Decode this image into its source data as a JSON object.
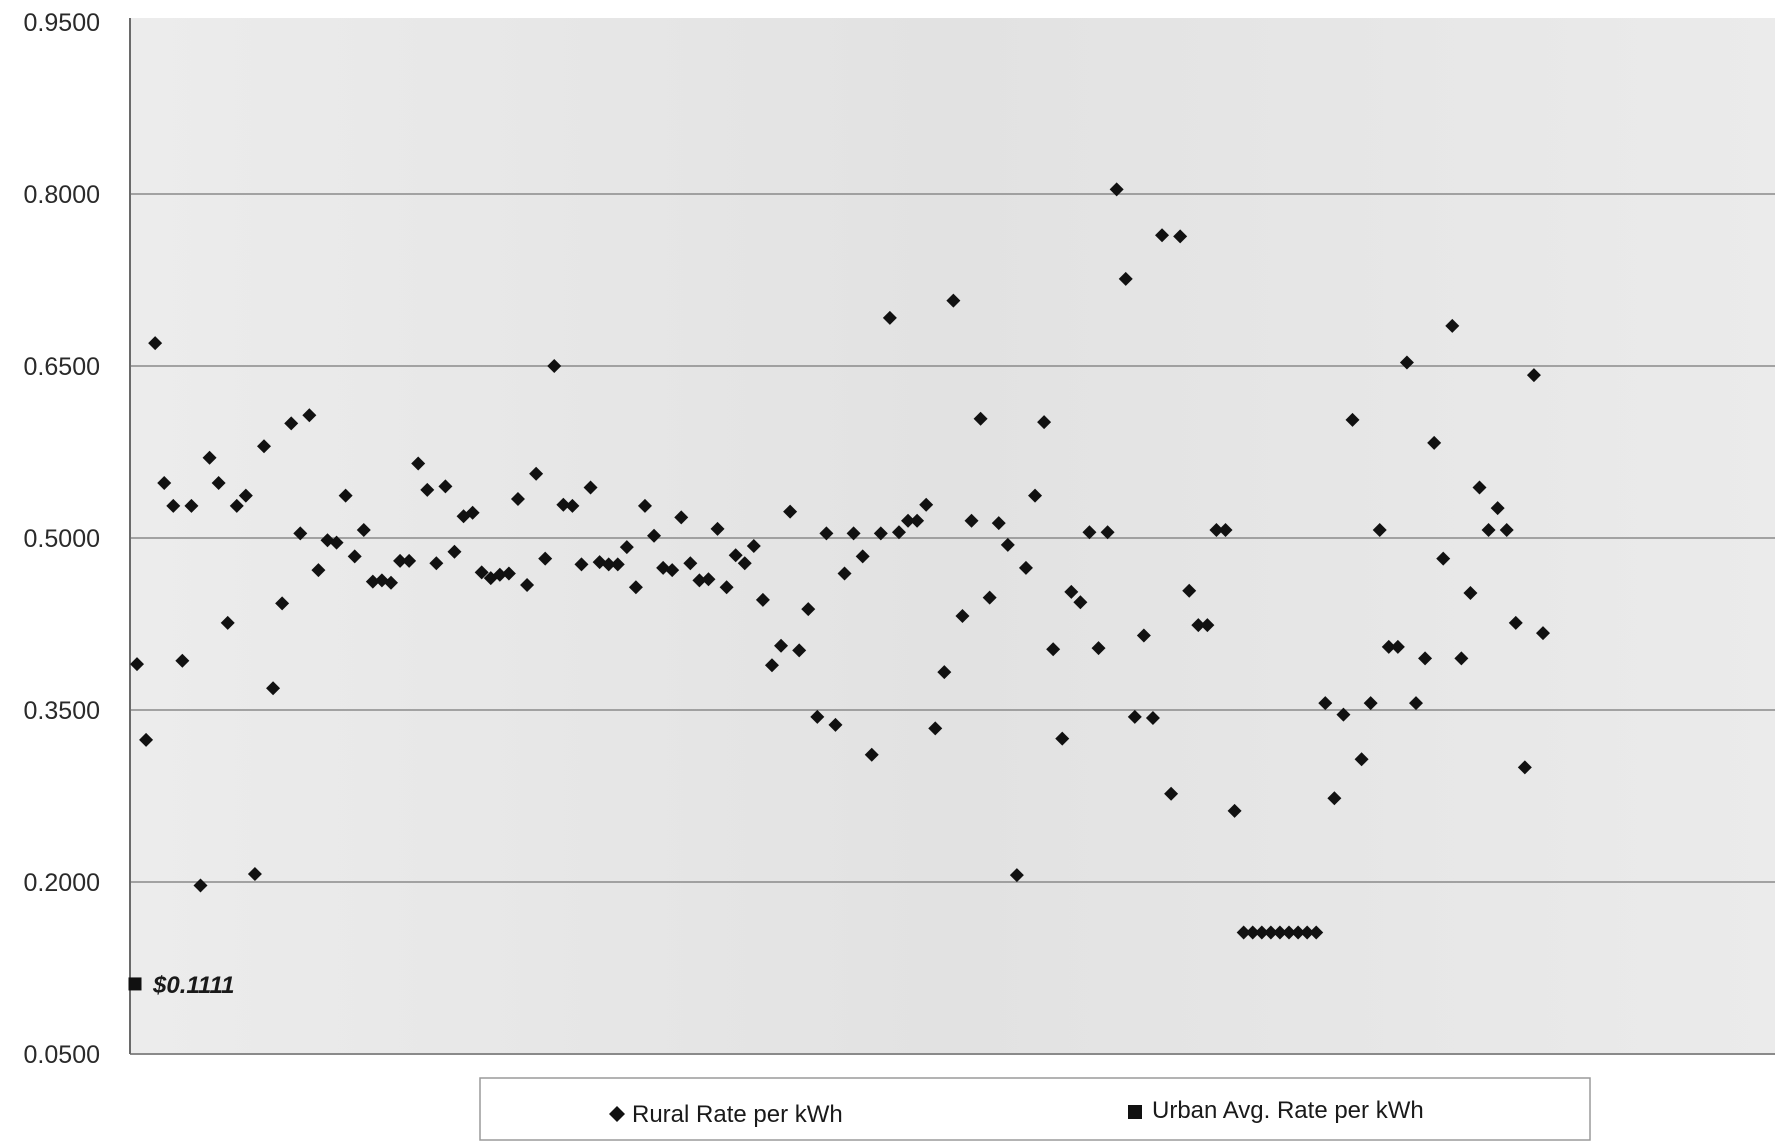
{
  "chart_data": {
    "type": "scatter",
    "title": "",
    "xlabel": "",
    "ylabel": "",
    "ylim": [
      0.05,
      0.95
    ],
    "yticks": [
      "0.9500",
      "0.8000",
      "0.6500",
      "0.5000",
      "0.3500",
      "0.2000",
      "0.0500"
    ],
    "grid": true,
    "legend_placement": "bottom-center",
    "colors": {
      "marker": "#111111",
      "grid": "#8a8a8a",
      "plot_bg": "#e6e6e6"
    },
    "series": [
      {
        "name": "Rural Rate per kWh",
        "marker": "diamond",
        "points": [
          [
            1,
            0.39
          ],
          [
            2,
            0.324
          ],
          [
            3,
            0.67
          ],
          [
            4,
            0.548
          ],
          [
            5,
            0.528
          ],
          [
            6,
            0.393
          ],
          [
            7,
            0.528
          ],
          [
            8,
            0.197
          ],
          [
            9,
            0.57
          ],
          [
            10,
            0.548
          ],
          [
            11,
            0.426
          ],
          [
            12,
            0.528
          ],
          [
            13,
            0.537
          ],
          [
            14,
            0.207
          ],
          [
            15,
            0.58
          ],
          [
            16,
            0.369
          ],
          [
            17,
            0.443
          ],
          [
            18,
            0.6
          ],
          [
            19,
            0.504
          ],
          [
            20,
            0.607
          ],
          [
            21,
            0.472
          ],
          [
            22,
            0.498
          ],
          [
            23,
            0.496
          ],
          [
            24,
            0.537
          ],
          [
            25,
            0.484
          ],
          [
            26,
            0.507
          ],
          [
            27,
            0.462
          ],
          [
            28,
            0.463
          ],
          [
            29,
            0.461
          ],
          [
            30,
            0.48
          ],
          [
            31,
            0.48
          ],
          [
            32,
            0.565
          ],
          [
            33,
            0.542
          ],
          [
            34,
            0.478
          ],
          [
            35,
            0.545
          ],
          [
            36,
            0.488
          ],
          [
            37,
            0.519
          ],
          [
            38,
            0.522
          ],
          [
            39,
            0.47
          ],
          [
            40,
            0.465
          ],
          [
            41,
            0.468
          ],
          [
            42,
            0.469
          ],
          [
            43,
            0.534
          ],
          [
            44,
            0.459
          ],
          [
            45,
            0.556
          ],
          [
            46,
            0.482
          ],
          [
            47,
            0.65
          ],
          [
            48,
            0.529
          ],
          [
            49,
            0.528
          ],
          [
            50,
            0.477
          ],
          [
            51,
            0.544
          ],
          [
            52,
            0.479
          ],
          [
            53,
            0.477
          ],
          [
            54,
            0.477
          ],
          [
            55,
            0.492
          ],
          [
            56,
            0.457
          ],
          [
            57,
            0.528
          ],
          [
            58,
            0.502
          ],
          [
            59,
            0.474
          ],
          [
            60,
            0.472
          ],
          [
            61,
            0.518
          ],
          [
            62,
            0.478
          ],
          [
            63,
            0.463
          ],
          [
            64,
            0.464
          ],
          [
            65,
            0.508
          ],
          [
            66,
            0.457
          ],
          [
            67,
            0.485
          ],
          [
            68,
            0.478
          ],
          [
            69,
            0.493
          ],
          [
            70,
            0.446
          ],
          [
            71,
            0.389
          ],
          [
            72,
            0.406
          ],
          [
            73,
            0.523
          ],
          [
            74,
            0.402
          ],
          [
            75,
            0.438
          ],
          [
            76,
            0.344
          ],
          [
            77,
            0.504
          ],
          [
            78,
            0.337
          ],
          [
            79,
            0.469
          ],
          [
            80,
            0.504
          ],
          [
            81,
            0.484
          ],
          [
            82,
            0.311
          ],
          [
            83,
            0.504
          ],
          [
            84,
            0.692
          ],
          [
            85,
            0.505
          ],
          [
            86,
            0.515
          ],
          [
            87,
            0.515
          ],
          [
            88,
            0.529
          ],
          [
            89,
            0.334
          ],
          [
            90,
            0.383
          ],
          [
            91,
            0.707
          ],
          [
            92,
            0.432
          ],
          [
            93,
            0.515
          ],
          [
            94,
            0.604
          ],
          [
            95,
            0.448
          ],
          [
            96,
            0.513
          ],
          [
            97,
            0.494
          ],
          [
            98,
            0.206
          ],
          [
            99,
            0.474
          ],
          [
            100,
            0.537
          ],
          [
            101,
            0.601
          ],
          [
            102,
            0.403
          ],
          [
            103,
            0.325
          ],
          [
            104,
            0.453
          ],
          [
            105,
            0.444
          ],
          [
            106,
            0.505
          ],
          [
            107,
            0.404
          ],
          [
            108,
            0.505
          ],
          [
            109,
            0.804
          ],
          [
            110,
            0.726
          ],
          [
            111,
            0.344
          ],
          [
            112,
            0.415
          ],
          [
            113,
            0.343
          ],
          [
            114,
            0.764
          ],
          [
            115,
            0.277
          ],
          [
            116,
            0.763
          ],
          [
            117,
            0.454
          ],
          [
            118,
            0.424
          ],
          [
            119,
            0.424
          ],
          [
            120,
            0.507
          ],
          [
            121,
            0.507
          ],
          [
            122,
            0.262
          ],
          [
            123,
            0.156
          ],
          [
            124,
            0.156
          ],
          [
            125,
            0.156
          ],
          [
            126,
            0.156
          ],
          [
            127,
            0.156
          ],
          [
            128,
            0.156
          ],
          [
            129,
            0.156
          ],
          [
            130,
            0.156
          ],
          [
            131,
            0.156
          ],
          [
            132,
            0.356
          ],
          [
            133,
            0.273
          ],
          [
            134,
            0.346
          ],
          [
            135,
            0.603
          ],
          [
            136,
            0.307
          ],
          [
            137,
            0.356
          ],
          [
            138,
            0.507
          ],
          [
            139,
            0.405
          ],
          [
            140,
            0.405
          ],
          [
            141,
            0.653
          ],
          [
            142,
            0.356
          ],
          [
            143,
            0.395
          ],
          [
            144,
            0.583
          ],
          [
            145,
            0.482
          ],
          [
            146,
            0.685
          ],
          [
            147,
            0.395
          ],
          [
            148,
            0.452
          ],
          [
            149,
            0.544
          ],
          [
            150,
            0.507
          ],
          [
            151,
            0.526
          ],
          [
            152,
            0.507
          ],
          [
            153,
            0.426
          ],
          [
            154,
            0.3
          ],
          [
            155,
            0.642
          ],
          [
            156,
            0.417
          ]
        ]
      },
      {
        "name": "Urban Avg. Rate per kWh",
        "marker": "square",
        "points": [
          [
            1,
            0.1111
          ]
        ],
        "annotation": "$0.1111"
      }
    ]
  }
}
